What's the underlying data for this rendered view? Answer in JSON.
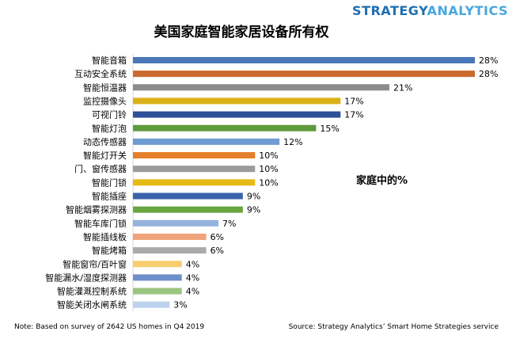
{
  "brand": {
    "part1": "STRATEGY",
    "part2": "ANALYTICS",
    "color1": "#1f6fb2",
    "color2": "#49a7dd"
  },
  "note": "Note: Based on survey of 2642 US homes in Q4 2019",
  "source": "Source: Strategy Analytics’ Smart Home Strategies service",
  "chart_data": {
    "type": "bar",
    "orientation": "horizontal",
    "title": "美国家庭智能家居设备所有权",
    "annotation": "家庭中的%",
    "value_suffix": "%",
    "xlim": [
      0,
      28
    ],
    "grid": false,
    "categories": [
      "智能音箱",
      "互动安全系统",
      "智能恒温器",
      "监控摄像头",
      "可视门铃",
      "智能灯泡",
      "动态传感器",
      "智能灯开关",
      "门、窗传感器",
      "智能门锁",
      "智能插座",
      "智能烟雾探测器",
      "智能车库门锁",
      "智能插线板",
      "智能烤箱",
      "智能窗帘/百叶窗",
      "智能漏水/湿度探测器",
      "智能灌溉控制系统",
      "智能关闭水闸系统"
    ],
    "values": [
      28,
      28,
      21,
      17,
      17,
      15,
      12,
      10,
      10,
      10,
      9,
      9,
      7,
      6,
      6,
      4,
      4,
      4,
      3
    ],
    "colors": [
      "#4a77b8",
      "#c96a2c",
      "#8c8c8c",
      "#dbb017",
      "#2f4f9a",
      "#5f9a3c",
      "#6f9bd0",
      "#e57f2a",
      "#9b9b9b",
      "#e7b914",
      "#3b63ab",
      "#69a63f",
      "#93b3dc",
      "#f0a37a",
      "#aaaaaa",
      "#f6ce6d",
      "#6f8fcb",
      "#9bc47f",
      "#bcd1ec"
    ]
  }
}
